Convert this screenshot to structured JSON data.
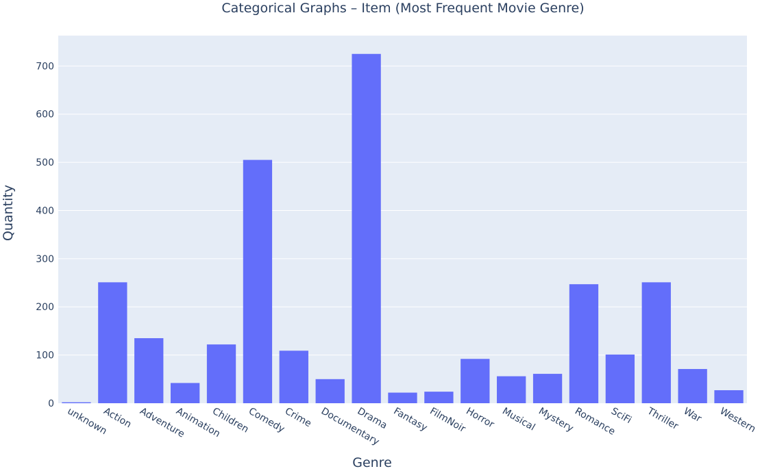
{
  "chart_data": {
    "type": "bar",
    "title": "Categorical Graphs – Item (Most Frequent Movie Genre)",
    "xlabel": "Genre",
    "ylabel": "Quantity",
    "categories": [
      "unknown",
      "Action",
      "Adventure",
      "Animation",
      "Children",
      "Comedy",
      "Crime",
      "Documentary",
      "Drama",
      "Fantasy",
      "FilmNoir",
      "Horror",
      "Musical",
      "Mystery",
      "Romance",
      "SciFi",
      "Thriller",
      "War",
      "Western"
    ],
    "values": [
      2,
      251,
      135,
      42,
      122,
      505,
      109,
      50,
      725,
      22,
      24,
      92,
      56,
      61,
      247,
      101,
      251,
      71,
      27
    ],
    "ylim": [
      0,
      763
    ],
    "yticks": [
      0,
      100,
      200,
      300,
      400,
      500,
      600,
      700
    ],
    "grid": true,
    "bar_color": "#636efa",
    "plot_bgcolor": "#e5ecf6",
    "legend": "none"
  }
}
